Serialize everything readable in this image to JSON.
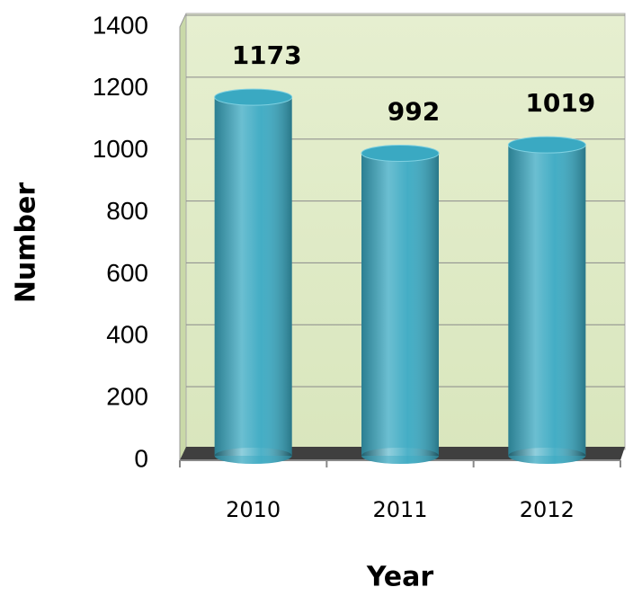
{
  "chart_data": {
    "type": "bar",
    "categories": [
      "2010",
      "2011",
      "2012"
    ],
    "values": [
      1173,
      992,
      1019
    ],
    "color": "#3aa9c2",
    "xlabel": "Year",
    "ylabel": "Number",
    "ylim": [
      0,
      1400
    ],
    "yticks": [
      0,
      200,
      400,
      600,
      800,
      1000,
      1200,
      1400
    ],
    "grid": true
  }
}
